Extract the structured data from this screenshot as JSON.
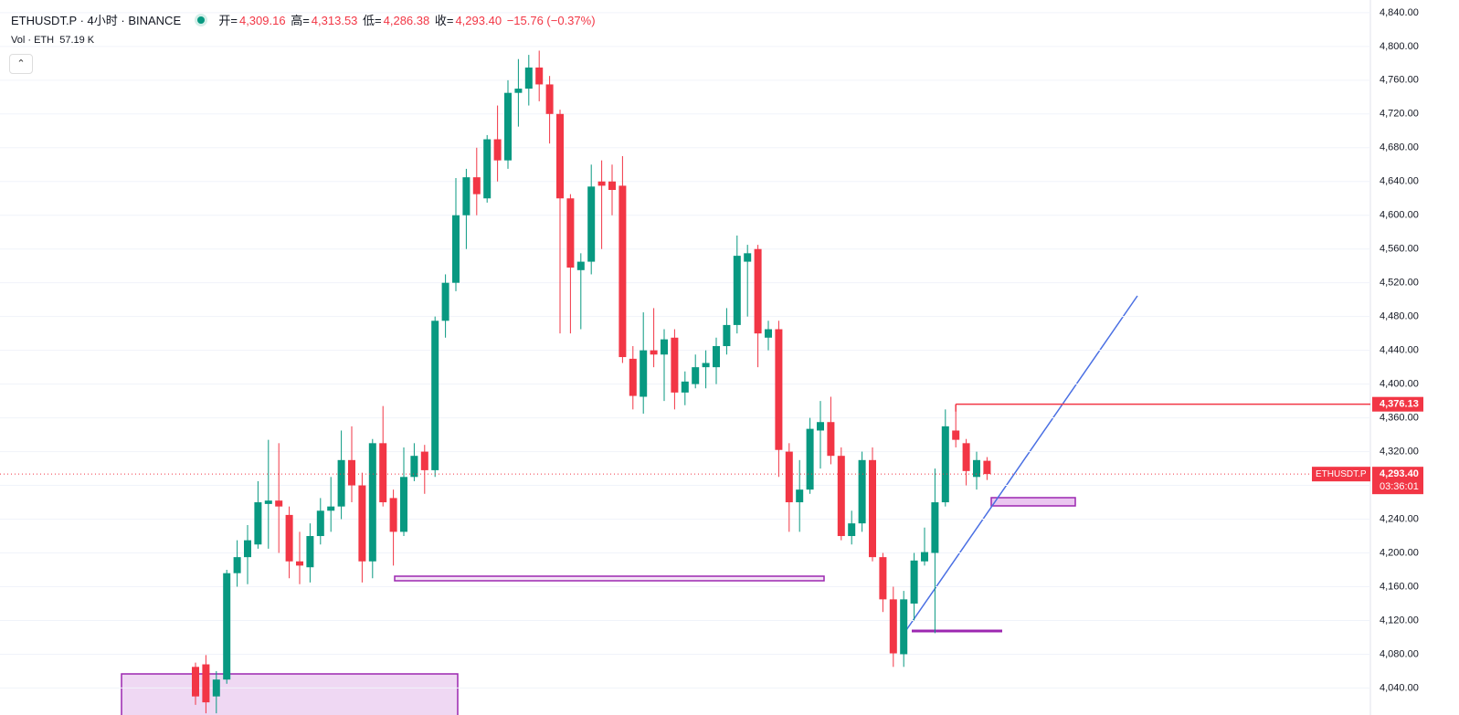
{
  "chart_data": {
    "type": "candlestick",
    "header": {
      "symbol": "ETHUSDT.P · 4小时 · BINANCE",
      "open_label": "开=",
      "open": "4,309.16",
      "high_label": "高=",
      "high": "4,313.53",
      "low_label": "低=",
      "low": "4,286.38",
      "close_label": "收=",
      "close": "4,293.40",
      "change": "−15.76 (−0.37%)",
      "volume_label": "Vol · ETH",
      "volume": "57.19 K"
    },
    "price_tag": {
      "symbol": "ETHUSDT.P",
      "value": 4293.4,
      "label": "4,293.40",
      "countdown": "03:36:01"
    },
    "price_line": {
      "value": 4376.13,
      "label": "4,376.13"
    },
    "up_color": "#089981",
    "down_color": "#f23645",
    "ylim": [
      4008,
      4855
    ],
    "yticks": [
      {
        "value": 4040,
        "label": "4,040.00"
      },
      {
        "value": 4080,
        "label": "4,080.00"
      },
      {
        "value": 4120,
        "label": "4,120.00"
      },
      {
        "value": 4160,
        "label": "4,160.00"
      },
      {
        "value": 4200,
        "label": "4,200.00"
      },
      {
        "value": 4240,
        "label": "4,240.00"
      },
      {
        "value": 4280,
        "label": "4,280.00"
      },
      {
        "value": 4320,
        "label": "4,320.00"
      },
      {
        "value": 4360,
        "label": "4,360.00"
      },
      {
        "value": 4400,
        "label": "4,400.00"
      },
      {
        "value": 4440,
        "label": "4,440.00"
      },
      {
        "value": 4480,
        "label": "4,480.00"
      },
      {
        "value": 4520,
        "label": "4,520.00"
      },
      {
        "value": 4560,
        "label": "4,560.00"
      },
      {
        "value": 4600,
        "label": "4,600.00"
      },
      {
        "value": 4640,
        "label": "4,640.00"
      },
      {
        "value": 4680,
        "label": "4,680.00"
      },
      {
        "value": 4720,
        "label": "4,720.00"
      },
      {
        "value": 4760,
        "label": "4,760.00"
      },
      {
        "value": 4800,
        "label": "4,800.00"
      },
      {
        "value": 4840,
        "label": "4,840.00"
      }
    ],
    "open": [
      4065,
      4068,
      4030,
      4050,
      4176,
      4195,
      4210,
      4258,
      4262,
      4245,
      4190,
      4183,
      4220,
      4250,
      4255,
      4310,
      4280,
      4190,
      4330,
      4265,
      4225,
      4290,
      4320,
      4298,
      4475,
      4520,
      4600,
      4645,
      4620,
      4690,
      4665,
      4745,
      4750,
      4775,
      4755,
      4720,
      4620,
      4535,
      4545,
      4640,
      4640,
      4635,
      4430,
      4385,
      4440,
      4435,
      4455,
      4390,
      4400,
      4420,
      4420,
      4445,
      4470,
      4545,
      4560,
      4455,
      4465,
      4320,
      4260,
      4275,
      4345,
      4355,
      4315,
      4220,
      4235,
      4310,
      4195,
      4145,
      4080,
      4140,
      4190,
      4200,
      4260,
      4345,
      4330,
      4290,
      4309.16
    ],
    "high": [
      4070,
      4079,
      4060,
      4180,
      4215,
      4233,
      4285,
      4334,
      4330,
      4255,
      4225,
      4235,
      4265,
      4290,
      4345,
      4350,
      4295,
      4335,
      4374,
      4275,
      4325,
      4330,
      4328,
      4480,
      4530,
      4644,
      4655,
      4680,
      4695,
      4730,
      4760,
      4785,
      4790,
      4795,
      4765,
      4725,
      4625,
      4555,
      4660,
      4665,
      4660,
      4670,
      4445,
      4485,
      4490,
      4465,
      4465,
      4415,
      4435,
      4440,
      4455,
      4490,
      4576,
      4565,
      4565,
      4475,
      4475,
      4330,
      4310,
      4360,
      4380,
      4385,
      4325,
      4250,
      4320,
      4325,
      4200,
      4160,
      4155,
      4200,
      4230,
      4300,
      4370,
      4376.13,
      4335,
      4320,
      4313.53
    ],
    "low": [
      4020,
      4010,
      4010,
      4045,
      4160,
      4163,
      4205,
      4205,
      4200,
      4170,
      4163,
      4165,
      4210,
      4225,
      4240,
      4260,
      4165,
      4170,
      4255,
      4185,
      4220,
      4285,
      4270,
      4290,
      4455,
      4510,
      4560,
      4600,
      4615,
      4640,
      4655,
      4705,
      4730,
      4735,
      4685,
      4460,
      4460,
      4465,
      4530,
      4560,
      4600,
      4425,
      4370,
      4365,
      4420,
      4380,
      4370,
      4375,
      4395,
      4395,
      4400,
      4435,
      4460,
      4480,
      4420,
      4440,
      4290,
      4225,
      4225,
      4270,
      4300,
      4305,
      4215,
      4210,
      4225,
      4190,
      4130,
      4065,
      4065,
      4120,
      4185,
      4105,
      4255,
      4325,
      4280,
      4275,
      4286.38
    ],
    "close": [
      4030,
      4023,
      4050,
      4176,
      4195,
      4215,
      4260,
      4262,
      4255,
      4190,
      4185,
      4220,
      4250,
      4255,
      4310,
      4280,
      4190,
      4330,
      4260,
      4225,
      4290,
      4315,
      4298,
      4475,
      4520,
      4600,
      4645,
      4625,
      4690,
      4665,
      4745,
      4750,
      4775,
      4755,
      4720,
      4620,
      4538,
      4545,
      4634,
      4635,
      4630,
      4432,
      4386,
      4440,
      4435,
      4453,
      4390,
      4403,
      4420,
      4425,
      4445,
      4470,
      4552,
      4555,
      4460,
      4465,
      4322,
      4260,
      4275,
      4347,
      4355,
      4315,
      4220,
      4235,
      4310,
      4195,
      4145,
      4081,
      4145,
      4191,
      4201,
      4260,
      4350,
      4334,
      4297,
      4310,
      4293.4
    ]
  }
}
